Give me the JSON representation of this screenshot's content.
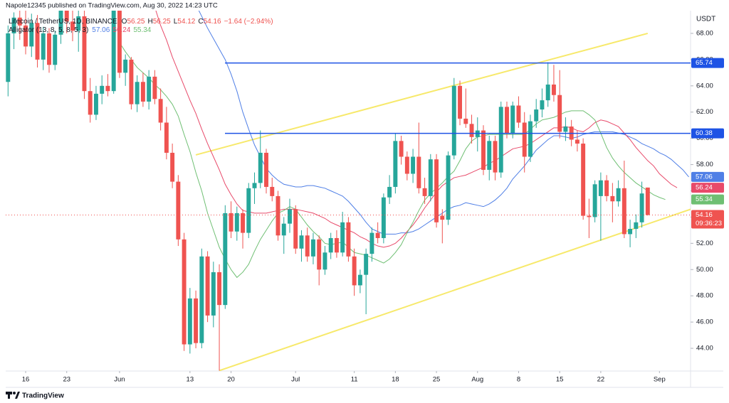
{
  "header": {
    "publisher": "Napole12345 published on TradingView.com, Aug 30, 2022 14:23 UTC",
    "symbol": "Litecoin / TetherUS, 1D, BINANCE",
    "ohlc_labels": [
      "O",
      "H",
      "L",
      "C"
    ],
    "change": "−1.64 (−2.94%)",
    "indicator": "Alligator (13, 8, 5, 8, 5, 3)",
    "currency": "USDT",
    "countdown": "09:36:23",
    "brand": "TradingView"
  },
  "chart_data": {
    "type": "candlestick",
    "categories": [
      null,
      null,
      null,
      "16",
      null,
      null,
      null,
      null,
      null,
      null,
      "23",
      null,
      null,
      null,
      null,
      null,
      null,
      null,
      null,
      "Jun",
      null,
      null,
      null,
      null,
      null,
      null,
      null,
      null,
      null,
      null,
      null,
      "13",
      null,
      null,
      null,
      null,
      null,
      null,
      "20",
      null,
      null,
      null,
      null,
      null,
      null,
      null,
      null,
      null,
      null,
      "Jul",
      null,
      null,
      null,
      null,
      null,
      null,
      null,
      null,
      null,
      "11",
      null,
      null,
      null,
      null,
      null,
      null,
      "18",
      null,
      null,
      null,
      null,
      null,
      null,
      "25",
      null,
      null,
      null,
      null,
      null,
      null,
      "Aug",
      null,
      null,
      null,
      null,
      null,
      null,
      "8",
      null,
      null,
      null,
      null,
      null,
      null,
      "15",
      null,
      null,
      null,
      null,
      null,
      null,
      "22",
      null,
      null,
      null,
      null,
      null,
      null,
      null,
      null,
      null,
      "Sep",
      null,
      null,
      null,
      null,
      null
    ],
    "open": [
      64.3,
      68.0,
      69.2,
      68.6,
      67.0,
      68.8,
      66.0,
      68.0,
      65.6,
      67.9,
      69.8,
      68.9,
      68.2,
      69.3,
      63.6,
      61.8,
      63.4,
      64.0,
      63.6,
      70.0,
      65.0,
      66.0,
      62.6,
      64.3,
      62.8,
      64.7,
      63.0,
      61.2,
      58.9,
      56.7,
      52.3,
      44.3,
      47.8,
      44.4,
      51.0,
      46.5,
      49.8,
      47.3,
      54.3,
      52.9,
      54.3,
      52.8,
      56.2,
      56.6,
      58.9,
      56.3,
      55.6,
      52.6,
      53.5,
      54.6,
      51.6,
      52.6,
      51.0,
      52.3,
      50.0,
      51.3,
      52.4,
      51.3,
      53.6,
      51.0,
      48.8,
      49.6,
      51.2,
      52.8,
      52.4,
      55.5,
      56.3,
      59.8,
      58.6,
      57.3,
      58.6,
      56.2,
      55.6,
      58.4,
      54.1,
      53.8,
      58.7,
      64.0,
      61.5,
      61.1,
      60.1,
      60.6,
      57.6,
      59.8,
      57.4,
      62.4,
      60.4,
      62.5,
      61.2,
      58.6,
      61.3,
      62.2,
      62.9,
      64.1,
      63.3,
      60.5,
      60.9,
      59.9,
      59.6,
      54.1,
      54.0,
      55.6,
      56.8,
      55.6,
      55.2,
      56.2,
      52.7,
      53.1,
      53.6,
      56.25,
      null,
      null,
      null,
      null,
      null,
      null,
      null
    ],
    "high": [
      68.6,
      69.6,
      70.5,
      69.8,
      69.5,
      69.4,
      68.5,
      68.4,
      68.2,
      70.4,
      70.6,
      69.9,
      69.8,
      69.8,
      64.6,
      64.0,
      64.8,
      64.9,
      70.6,
      70.4,
      66.4,
      66.2,
      64.8,
      65.0,
      65.2,
      65.2,
      63.8,
      62.4,
      59.6,
      57.2,
      52.8,
      48.6,
      48.4,
      51.6,
      51.4,
      50.6,
      50.4,
      54.9,
      55.2,
      54.8,
      54.6,
      56.6,
      57.4,
      60.6,
      59.2,
      57.0,
      56.0,
      54.0,
      55.4,
      54.9,
      53.0,
      53.2,
      52.8,
      52.6,
      51.8,
      52.8,
      53.0,
      54.4,
      54.0,
      51.6,
      50.0,
      51.6,
      53.2,
      53.6,
      55.8,
      57.2,
      60.4,
      60.2,
      59.0,
      59.2,
      61.2,
      57.0,
      58.8,
      58.8,
      54.6,
      59.0,
      64.6,
      64.4,
      63.8,
      61.8,
      61.6,
      61.0,
      60.2,
      60.2,
      62.8,
      62.8,
      62.8,
      63.2,
      62.0,
      61.8,
      63.0,
      63.8,
      65.8,
      65.6,
      65.2,
      61.6,
      61.4,
      60.6,
      60.0,
      55.4,
      56.8,
      57.4,
      57.2,
      56.6,
      56.8,
      58.3,
      53.8,
      54.2,
      56.7,
      56.25,
      null,
      null,
      null,
      null,
      null,
      null,
      null
    ],
    "low": [
      63.2,
      66.8,
      67.5,
      66.4,
      66.2,
      65.4,
      65.2,
      65.0,
      65.2,
      67.2,
      68.0,
      67.4,
      66.6,
      63.0,
      61.2,
      61.4,
      62.6,
      63.2,
      63.4,
      64.6,
      64.0,
      62.2,
      62.0,
      62.4,
      62.2,
      62.6,
      60.6,
      58.4,
      56.2,
      51.8,
      43.8,
      43.6,
      44.0,
      44.0,
      46.0,
      45.6,
      42.3,
      47.0,
      52.4,
      52.2,
      51.6,
      52.4,
      55.0,
      56.2,
      55.8,
      55.2,
      52.2,
      51.2,
      52.8,
      51.2,
      50.6,
      50.6,
      50.4,
      48.8,
      49.6,
      50.8,
      50.9,
      51.0,
      50.6,
      48.0,
      48.2,
      46.6,
      50.6,
      52.0,
      52.0,
      55.0,
      55.8,
      58.0,
      56.8,
      56.6,
      55.8,
      55.0,
      55.2,
      53.2,
      52.0,
      53.4,
      58.4,
      61.0,
      60.8,
      59.6,
      59.0,
      57.2,
      56.8,
      56.8,
      57.0,
      60.0,
      60.0,
      60.8,
      57.4,
      58.2,
      60.8,
      61.6,
      62.4,
      62.8,
      60.0,
      59.8,
      59.4,
      59.0,
      53.8,
      52.4,
      53.6,
      52.2,
      55.2,
      53.6,
      54.8,
      52.4,
      51.7,
      52.4,
      53.2,
      54.12,
      null,
      null,
      null,
      null,
      null,
      null,
      null
    ],
    "close": [
      68.0,
      69.2,
      68.6,
      67.0,
      68.8,
      66.0,
      68.0,
      65.6,
      67.9,
      69.8,
      68.9,
      68.2,
      69.3,
      63.6,
      61.8,
      63.4,
      64.0,
      63.6,
      70.0,
      65.0,
      66.0,
      62.6,
      64.3,
      62.8,
      64.7,
      63.0,
      61.2,
      58.9,
      56.7,
      52.3,
      44.3,
      47.8,
      44.4,
      51.0,
      46.5,
      49.8,
      47.3,
      54.3,
      52.9,
      54.3,
      52.8,
      56.2,
      56.6,
      58.9,
      56.3,
      55.6,
      52.6,
      53.5,
      54.6,
      51.6,
      52.6,
      51.0,
      52.3,
      50.0,
      51.3,
      52.4,
      51.3,
      53.6,
      51.0,
      48.8,
      49.6,
      51.2,
      52.8,
      52.4,
      55.5,
      56.3,
      59.8,
      58.6,
      57.3,
      58.6,
      56.2,
      55.6,
      58.4,
      53.6,
      53.8,
      58.7,
      64.0,
      61.5,
      61.1,
      60.1,
      60.6,
      57.6,
      59.8,
      57.4,
      62.4,
      60.4,
      62.5,
      61.2,
      58.6,
      61.3,
      62.2,
      62.9,
      64.1,
      63.3,
      60.5,
      60.9,
      59.9,
      59.6,
      54.1,
      54.0,
      56.5,
      56.8,
      55.6,
      55.2,
      56.2,
      52.7,
      53.1,
      53.6,
      55.8,
      54.16,
      null,
      null,
      null,
      null,
      null,
      null,
      null
    ],
    "up_color": "#26a69a",
    "down_color": "#ef5350",
    "series": [
      {
        "color": "#4f7fe6",
        "values": [
          null,
          null,
          null,
          null,
          null,
          null,
          null,
          null,
          null,
          null,
          null,
          null,
          null,
          null,
          null,
          null,
          null,
          null,
          null,
          null,
          null,
          null,
          null,
          null,
          null,
          null,
          null,
          null,
          null,
          null,
          null,
          null,
          70.2,
          69.3,
          68.4,
          67.6,
          66.8,
          66.0,
          64.9,
          63.6,
          62.0,
          60.7,
          59.5,
          58.6,
          57.7,
          57.2,
          56.8,
          56.5,
          56.4,
          56.3,
          56.3,
          56.4,
          56.4,
          56.3,
          56.2,
          56.0,
          55.8,
          55.6,
          55.2,
          54.7,
          54.2,
          53.6,
          53.1,
          52.9,
          52.7,
          52.7,
          52.7,
          52.8,
          52.8,
          52.9,
          53.1,
          53.4,
          53.7,
          54.0,
          54.3,
          54.6,
          54.8,
          54.9,
          55.1,
          55.0,
          54.9,
          54.8,
          55.0,
          55.3,
          55.7,
          56.2,
          56.9,
          57.4,
          57.9,
          58.5,
          59.1,
          59.5,
          59.9,
          60.2,
          60.2,
          60.1,
          60.0,
          60.1,
          60.3,
          60.4,
          60.5,
          60.5,
          60.5,
          60.5,
          60.4,
          60.3,
          60.1,
          59.9,
          59.6,
          59.4,
          59.2,
          58.9,
          58.7,
          58.4,
          58.0,
          57.6,
          57.06
        ]
      },
      {
        "color": "#e84a6a",
        "values": [
          null,
          null,
          null,
          null,
          null,
          null,
          null,
          null,
          null,
          null,
          null,
          null,
          null,
          null,
          null,
          null,
          null,
          null,
          null,
          null,
          null,
          null,
          null,
          null,
          null,
          70.0,
          68.6,
          67.5,
          66.2,
          65.1,
          64.0,
          62.9,
          61.9,
          60.7,
          59.6,
          58.6,
          57.6,
          56.5,
          55.7,
          55.0,
          54.5,
          54.4,
          54.3,
          54.3,
          54.3,
          54.4,
          54.5,
          54.6,
          54.6,
          54.6,
          54.5,
          54.4,
          54.3,
          54.1,
          53.9,
          53.6,
          53.4,
          53.2,
          53.0,
          52.8,
          52.5,
          52.3,
          52.0,
          51.8,
          51.7,
          51.8,
          52.0,
          52.4,
          52.9,
          53.4,
          54.0,
          54.7,
          55.3,
          55.9,
          56.4,
          56.7,
          57.0,
          57.1,
          57.2,
          57.4,
          57.6,
          57.8,
          58.1,
          58.3,
          58.6,
          58.9,
          59.2,
          59.3,
          59.4,
          59.6,
          59.9,
          60.2,
          60.5,
          60.8,
          60.8,
          60.9,
          60.8,
          60.6,
          60.5,
          60.8,
          61.2,
          61.4,
          61.3,
          61.1,
          60.9,
          60.4,
          59.9,
          59.3,
          58.8,
          58.3,
          57.9,
          57.3,
          56.9,
          56.5,
          56.24,
          null,
          null
        ]
      },
      {
        "color": "#6fbf73",
        "values": [
          null,
          null,
          null,
          null,
          null,
          null,
          null,
          null,
          null,
          null,
          null,
          null,
          null,
          null,
          null,
          null,
          null,
          null,
          null,
          67.3,
          66.6,
          66.0,
          65.4,
          65.0,
          64.6,
          64.1,
          63.7,
          63.2,
          62.6,
          61.7,
          60.3,
          59.0,
          57.4,
          56.0,
          54.3,
          53.0,
          51.7,
          50.8,
          50.0,
          49.4,
          49.8,
          50.4,
          51.4,
          52.3,
          53.0,
          53.7,
          54.3,
          54.5,
          54.8,
          54.6,
          54.0,
          53.4,
          52.9,
          52.5,
          52.0,
          51.9,
          52.0,
          52.1,
          51.7,
          51.3,
          51.2,
          51.1,
          50.9,
          50.7,
          50.5,
          50.8,
          51.3,
          51.9,
          52.8,
          53.6,
          54.5,
          55.3,
          55.8,
          56.2,
          56.6,
          57.1,
          57.5,
          58.3,
          59.2,
          59.8,
          60.1,
          60.2,
          60.3,
          60.3,
          60.3,
          60.3,
          60.3,
          60.3,
          60.3,
          60.7,
          61.1,
          61.4,
          61.5,
          61.6,
          61.8,
          62.0,
          62.1,
          62.1,
          62.1,
          61.8,
          61.4,
          60.4,
          59.3,
          58.5,
          57.9,
          57.4,
          57.0,
          56.6,
          56.3,
          56.0,
          55.7,
          55.5,
          55.34,
          null,
          null,
          null,
          null
        ]
      }
    ],
    "hlines": [
      {
        "value": 65.74,
        "color": "#1e53e5"
      },
      {
        "value": 60.38,
        "color": "#1e53e5"
      }
    ],
    "trendlines": [
      {
        "x": [
          32,
          109
        ],
        "values": [
          58.74,
          68.0
        ],
        "color": "#f7e96b"
      },
      {
        "x": [
          36,
          117
        ],
        "values": [
          42.3,
          54.7
        ],
        "color": "#f7e96b"
      }
    ],
    "xlim": [
      -0.4,
      116.3
    ],
    "ylim": [
      42.27,
      69.73
    ],
    "yticks": [
      {
        "value": 44,
        "label": "44.00"
      },
      {
        "value": 46,
        "label": "46.00"
      },
      {
        "value": 48,
        "label": "48.00"
      },
      {
        "value": 50,
        "label": "50.00"
      },
      {
        "value": 52,
        "label": "52.00"
      },
      {
        "value": 54,
        "label": "54.00"
      },
      {
        "value": 56,
        "label": "56.00"
      },
      {
        "value": 58,
        "label": "58.00"
      },
      {
        "value": 60,
        "label": "60.00"
      },
      {
        "value": 62,
        "label": "62.00"
      },
      {
        "value": 64,
        "label": "64.00"
      },
      {
        "value": 66,
        "label": "66.00"
      },
      {
        "value": 68,
        "label": "68.00"
      }
    ],
    "grid": false
  }
}
